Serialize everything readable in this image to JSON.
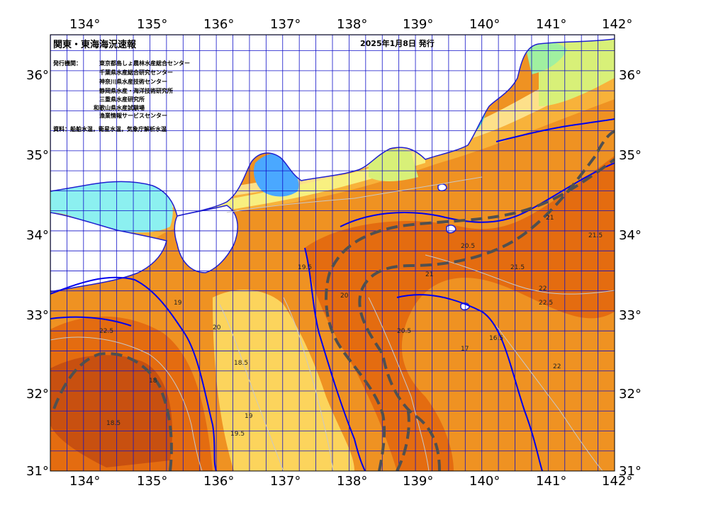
{
  "header": {
    "title": "関東・東海海況速報",
    "issued": "2025年1月8日 発行"
  },
  "issuers": {
    "label": "発行機関：",
    "items": [
      "東京都島しょ農林水産総合センター",
      "千葉県水産総合研究センター",
      "神奈川県水産技術センター",
      "静岡県水産・海洋技術研究所",
      "三重県水産研究所",
      "和歌山県水産試験場",
      "漁業情報サービスセンター"
    ]
  },
  "source": "資料：船舶水温，衛星水温，気象庁解析水温",
  "axes": {
    "lon_labels": [
      "134°",
      "135°",
      "136°",
      "137°",
      "138°",
      "139°",
      "140°",
      "141°",
      "142°"
    ],
    "lat_labels": [
      "36°",
      "35°",
      "34°",
      "33°",
      "32°",
      "31°"
    ]
  },
  "colors": {
    "frame": "#000000",
    "grid": "#1010c8",
    "front": "#0000ee",
    "isoline": "#c8c8c8",
    "current": "#505050",
    "land": "#ffffff",
    "t_lt10": "#4aa8ff",
    "t_10_12": "#46d7c8",
    "t_12_14": "#8cf0f0",
    "t_14_15": "#a0f0a0",
    "t_15_16": "#d8f078",
    "t_16_17": "#f8f080",
    "t_17_18": "#fde08a",
    "t_18_19": "#fcd45c",
    "t_19_20": "#f8b23a",
    "t_20_21": "#ef9222",
    "t_21_22": "#e46c10",
    "t_gt22": "#c85010"
  },
  "isotherm_labels": [
    "18.5",
    "19",
    "19.5",
    "20",
    "20.5",
    "21",
    "21.5",
    "22",
    "22.5",
    "16.5",
    "17",
    "18"
  ]
}
